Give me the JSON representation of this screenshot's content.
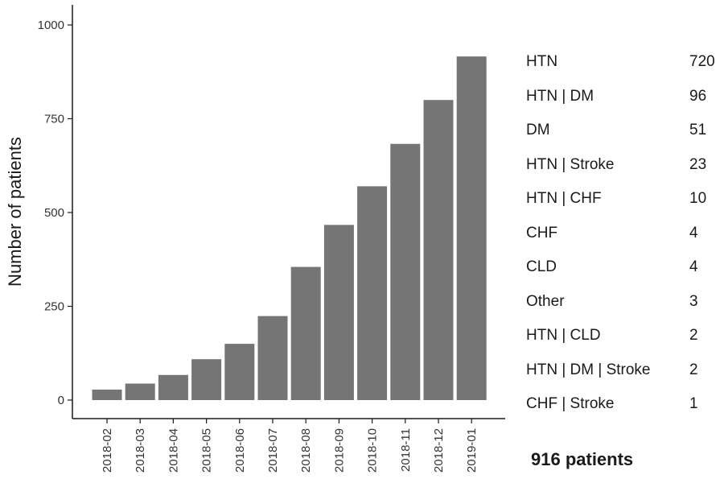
{
  "chart_data": {
    "type": "bar",
    "categories": [
      "2018-02",
      "2018-03",
      "2018-04",
      "2018-05",
      "2018-06",
      "2018-07",
      "2018-08",
      "2018-09",
      "2018-10",
      "2018-11",
      "2018-12",
      "2019-01"
    ],
    "values": [
      28,
      44,
      67,
      109,
      150,
      224,
      355,
      467,
      570,
      683,
      800,
      916
    ],
    "title": "",
    "xlabel": "",
    "ylabel": "Number of patients",
    "ylim": [
      0,
      1000
    ],
    "yticks": [
      0,
      250,
      500,
      750,
      1000
    ],
    "bar_color": "#757575",
    "grid": false
  },
  "legend_table": {
    "rows": [
      {
        "label": "HTN",
        "count": "720"
      },
      {
        "label": "HTN | DM",
        "count": "96"
      },
      {
        "label": "DM",
        "count": "51"
      },
      {
        "label": "HTN | Stroke",
        "count": "23"
      },
      {
        "label": "HTN | CHF",
        "count": "10"
      },
      {
        "label": "CHF",
        "count": "4"
      },
      {
        "label": "CLD",
        "count": "4"
      },
      {
        "label": "Other",
        "count": "3"
      },
      {
        "label": "HTN | CLD",
        "count": "2"
      },
      {
        "label": "HTN | DM | Stroke",
        "count": "2"
      },
      {
        "label": "CHF | Stroke",
        "count": "1"
      }
    ]
  },
  "total_label": "916 patients"
}
